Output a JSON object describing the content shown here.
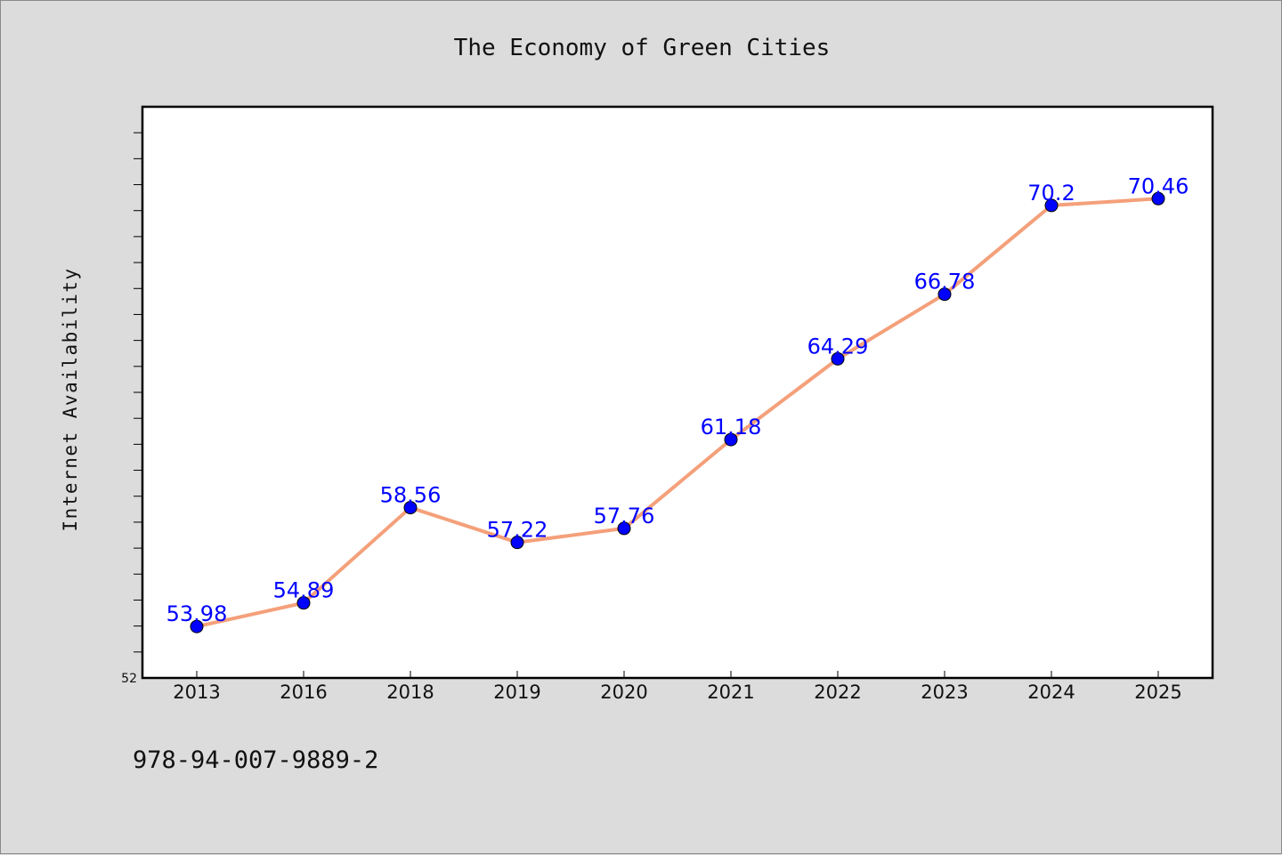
{
  "footer_text": "978-94-007-9889-2",
  "colors": {
    "background": "#dcdcdc",
    "plot_background": "#ffffff",
    "line": "#f4a07a",
    "marker": "#0000ff",
    "data_label": "#0000ff"
  },
  "chart_data": {
    "type": "line",
    "title": "The Economy of Green Cities",
    "xlabel": "",
    "ylabel": "Internet Availability",
    "categories": [
      "2013",
      "2016",
      "2018",
      "2019",
      "2020",
      "2021",
      "2022",
      "2023",
      "2024",
      "2025"
    ],
    "series": [
      {
        "values": [
          53.98,
          54.89,
          58.56,
          57.22,
          57.76,
          61.18,
          64.29,
          66.78,
          70.2,
          70.46
        ],
        "data_labels": [
          "53.98",
          "54.89",
          "58.56",
          "57.22",
          "57.76",
          "61.18",
          "64.29",
          "66.78",
          "70.2",
          "70.46"
        ]
      }
    ],
    "ylim": [
      52,
      74
    ],
    "y_tick_labels": [
      "52"
    ],
    "y_minor_step": 1,
    "grid": false,
    "legend": "none"
  }
}
